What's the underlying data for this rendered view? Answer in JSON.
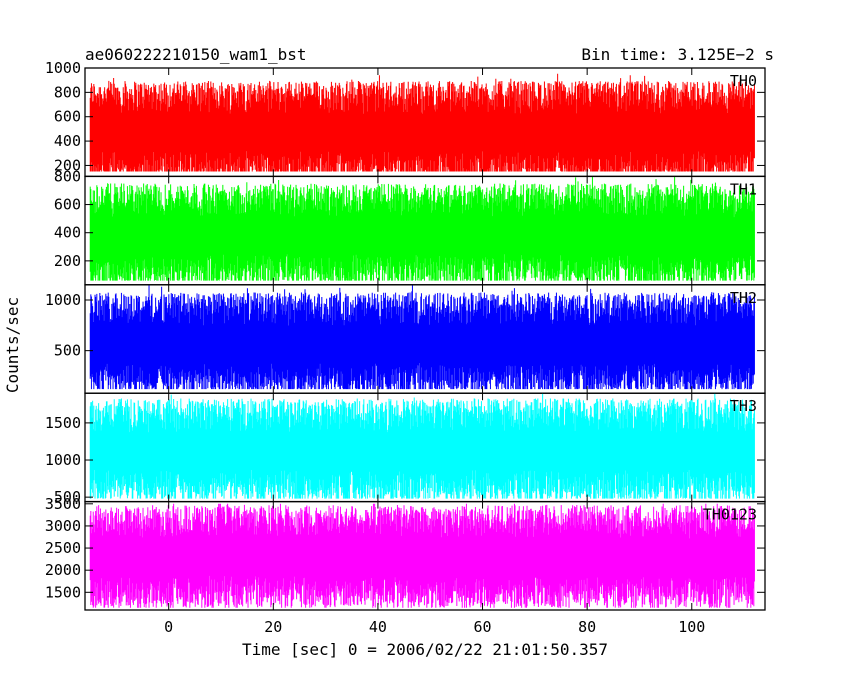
{
  "header": {
    "title": "ae060222210150_wam1_bst",
    "bin_time": "Bin time: 3.125E−2 s"
  },
  "axes": {
    "xlabel": "Time [sec] 0 = 2006/02/22 21:01:50.357",
    "ylabel": "Counts/sec"
  },
  "chart_data": {
    "type": "line",
    "title": "ae060222210150_wam1_bst",
    "xlabel": "Time [sec] 0 = 2006/02/22 21:01:50.357",
    "ylabel": "Counts/sec",
    "xlim": [
      -16,
      114
    ],
    "x_ticks": [
      0,
      20,
      40,
      60,
      80,
      100
    ],
    "data_x_range": [
      -15,
      112
    ],
    "bin_time_s": 0.03125,
    "grid": false,
    "series": [
      {
        "name": "TH0",
        "color": "#ff0000",
        "ylim": [
          110,
          1000
        ],
        "y_ticks": [
          200,
          400,
          600,
          800,
          1000
        ],
        "level": 470,
        "min": 150,
        "max": 1000
      },
      {
        "name": "TH1",
        "color": "#00ff00",
        "ylim": [
          30,
          800
        ],
        "y_ticks": [
          200,
          400,
          600,
          800
        ],
        "level": 380,
        "min": 60,
        "max": 800
      },
      {
        "name": "TH2",
        "color": "#0000ff",
        "ylim": [
          80,
          1150
        ],
        "y_ticks": [
          500,
          1000
        ],
        "level": 560,
        "min": 120,
        "max": 1150
      },
      {
        "name": "TH3",
        "color": "#00ffff",
        "ylim": [
          440,
          1900
        ],
        "y_ticks": [
          500,
          1000,
          1500
        ],
        "level": 1120,
        "min": 480,
        "max": 1900
      },
      {
        "name": "TH0123",
        "color": "#ff00ff",
        "ylim": [
          1100,
          3550
        ],
        "y_ticks": [
          1500,
          2000,
          2500,
          3000,
          3500
        ],
        "level": 2300,
        "min": 1150,
        "max": 3500
      }
    ]
  }
}
